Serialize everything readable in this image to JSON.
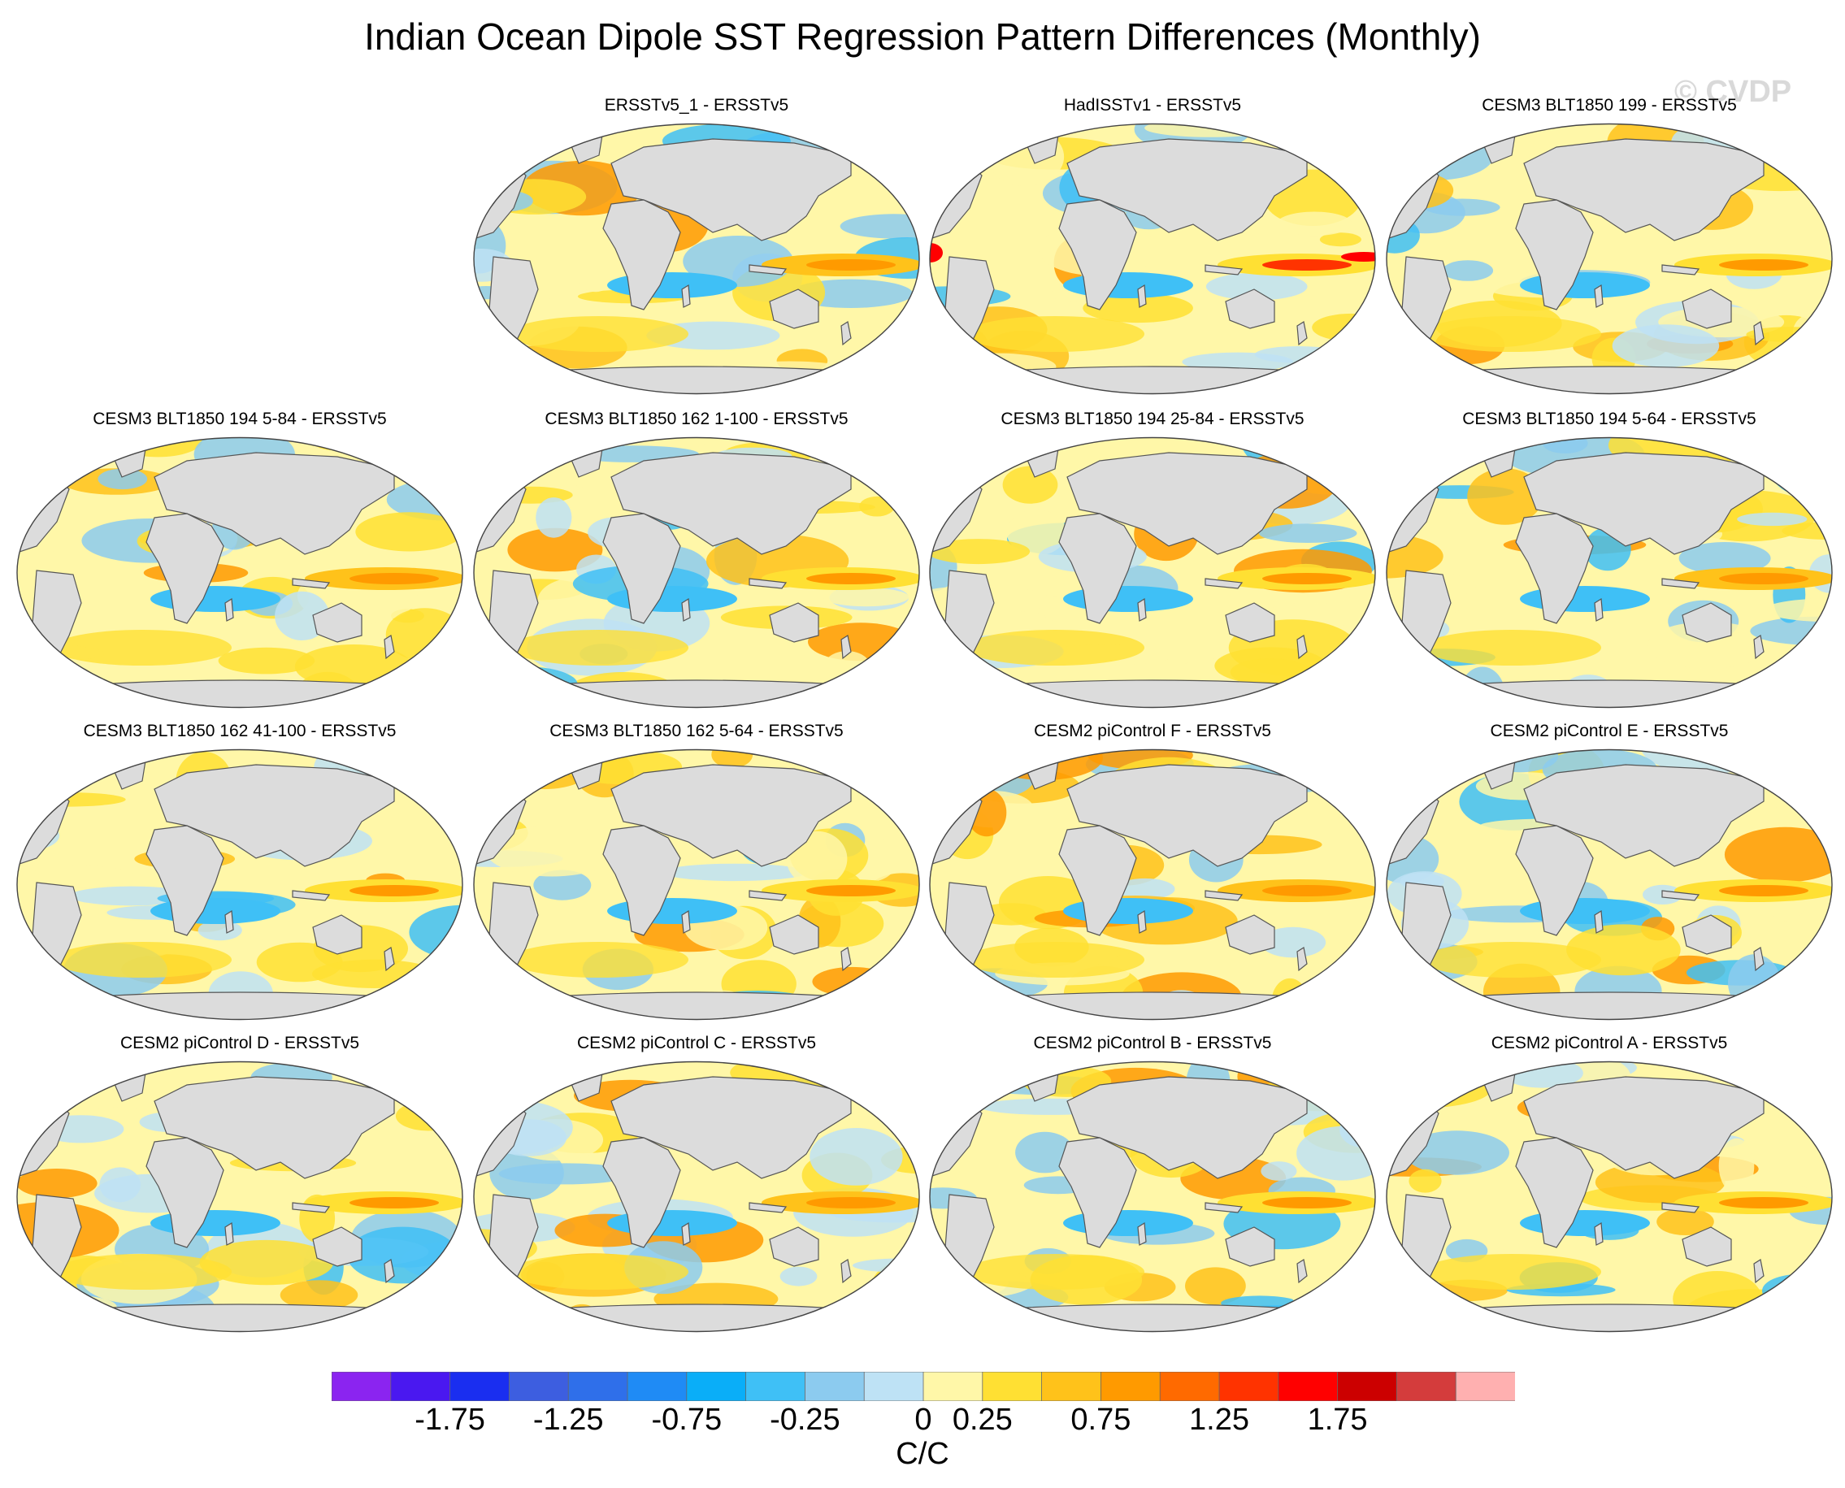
{
  "title": "Indian Ocean Dipole SST Regression Pattern Differences (Monthly)",
  "watermark": "© CVDP",
  "colors": {
    "land": "#dcdcdc",
    "coast": "#555555",
    "scale": [
      "#8b24f0",
      "#4a18f0",
      "#1a2ef0",
      "#3d5ee0",
      "#2f6fea",
      "#1f8bf5",
      "#0aaef8",
      "#3fc0f6",
      "#8ccbef",
      "#bee2f5",
      "#fff7a8",
      "#ffe033",
      "#ffc21a",
      "#ff9a00",
      "#ff6a00",
      "#ff3300",
      "#ff0000",
      "#cc0000",
      "#d43c3c",
      "#ffb0b0"
    ]
  },
  "maps": [
    {
      "label": "ERSSTv5_1 - ERSSTv5",
      "row": 0,
      "col": 1,
      "variant": 0
    },
    {
      "label": "HadISSTv1 - ERSSTv5",
      "row": 0,
      "col": 2,
      "variant": 1
    },
    {
      "label": "CESM3 BLT1850 199 - ERSSTv5",
      "row": 0,
      "col": 3,
      "variant": 2
    },
    {
      "label": "CESM3 BLT1850 194 5-84 - ERSSTv5",
      "row": 1,
      "col": 0,
      "variant": 3
    },
    {
      "label": "CESM3 BLT1850 162 1-100 - ERSSTv5",
      "row": 1,
      "col": 1,
      "variant": 4
    },
    {
      "label": "CESM3 BLT1850 194 25-84 - ERSSTv5",
      "row": 1,
      "col": 2,
      "variant": 5
    },
    {
      "label": "CESM3 BLT1850 194 5-64 - ERSSTv5",
      "row": 1,
      "col": 3,
      "variant": 6
    },
    {
      "label": "CESM3 BLT1850 162 41-100 - ERSSTv5",
      "row": 2,
      "col": 0,
      "variant": 7
    },
    {
      "label": "CESM3 BLT1850 162 5-64 - ERSSTv5",
      "row": 2,
      "col": 1,
      "variant": 8
    },
    {
      "label": "CESM2 piControl F - ERSSTv5",
      "row": 2,
      "col": 2,
      "variant": 9
    },
    {
      "label": "CESM2 piControl E - ERSSTv5",
      "row": 2,
      "col": 3,
      "variant": 10
    },
    {
      "label": "CESM2 piControl D - ERSSTv5",
      "row": 3,
      "col": 0,
      "variant": 11
    },
    {
      "label": "CESM2 piControl C - ERSSTv5",
      "row": 3,
      "col": 1,
      "variant": 12
    },
    {
      "label": "CESM2 piControl B - ERSSTv5",
      "row": 3,
      "col": 2,
      "variant": 13
    },
    {
      "label": "CESM2 piControl A - ERSSTv5",
      "row": 3,
      "col": 3,
      "variant": 14
    }
  ],
  "colorbar": {
    "tick_labels": [
      "-1.75",
      "-1.25",
      "-0.75",
      "-0.25",
      "0",
      "0.25",
      "0.75",
      "1.25",
      "1.75"
    ],
    "units": "C/C",
    "levels": [
      -2,
      -1.75,
      -1.5,
      -1.25,
      -1,
      -0.75,
      -0.5,
      -0.25,
      0,
      0.25,
      0.5,
      0.75,
      1,
      1.25,
      1.5,
      1.75,
      2
    ]
  }
}
